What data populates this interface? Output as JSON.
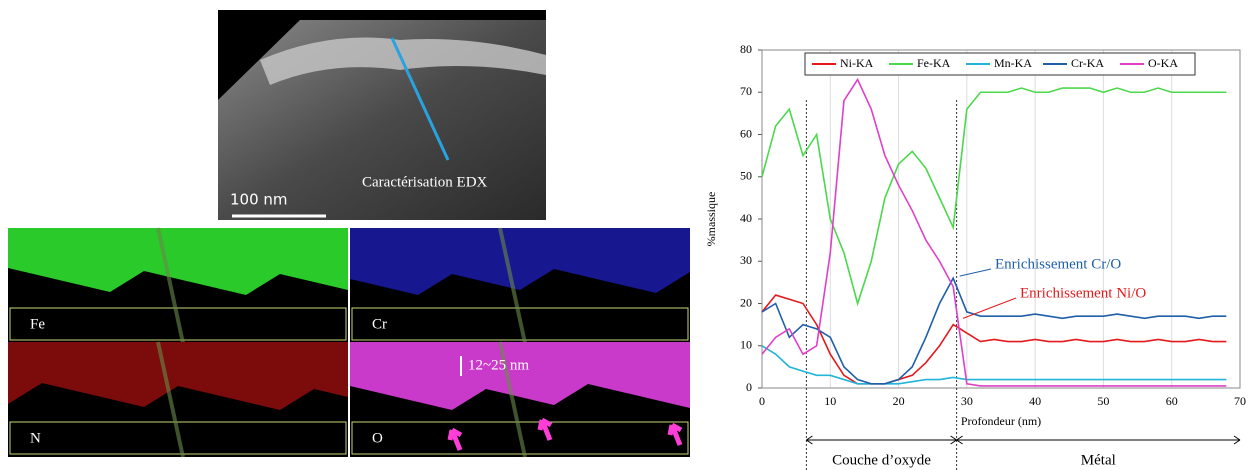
{
  "images": {
    "caption": "Caractérisation EDX",
    "scale_bar": "100 nm",
    "maps": [
      {
        "label": "Fe",
        "color": "#2ee02e"
      },
      {
        "label": "Cr",
        "color": "#1a1aa0"
      },
      {
        "label": "N",
        "color": "#8a0c0c"
      },
      {
        "label": "O",
        "color": "#e040e0"
      }
    ],
    "thickness": "12~25 nm"
  },
  "chart_data": {
    "type": "line",
    "x_label": "Profondeur (nm)",
    "y_label": "%massique",
    "x": [
      0,
      2,
      4,
      6,
      8,
      10,
      12,
      14,
      16,
      18,
      20,
      22,
      24,
      26,
      28,
      30,
      32,
      34,
      36,
      38,
      40,
      42,
      44,
      46,
      48,
      50,
      52,
      54,
      56,
      58,
      60,
      62,
      64,
      66,
      68
    ],
    "series": [
      {
        "name": "Ni-KA",
        "color": "#e41a1c",
        "values": [
          18,
          22,
          21,
          20,
          15,
          8,
          3,
          1,
          1,
          1,
          2,
          3,
          6,
          10,
          15,
          13,
          11,
          11.5,
          11,
          11,
          11.5,
          11,
          11,
          11.5,
          11,
          11,
          11.5,
          11,
          11,
          11.5,
          11,
          11,
          11.5,
          11,
          11
        ]
      },
      {
        "name": "Fe-KA",
        "color": "#4cd84c",
        "values": [
          50,
          62,
          66,
          55,
          60,
          40,
          32,
          20,
          30,
          45,
          53,
          56,
          52,
          45,
          38,
          66,
          70,
          70,
          70,
          71,
          70,
          70,
          71,
          71,
          71,
          70,
          71,
          70,
          70,
          71,
          70,
          70,
          70,
          70,
          70
        ]
      },
      {
        "name": "Mn-KA",
        "color": "#22b5d8",
        "values": [
          10,
          8,
          5,
          4,
          3,
          3,
          2,
          1,
          1,
          1,
          1,
          1.5,
          2,
          2,
          2.5,
          2,
          2,
          2,
          2,
          2,
          2,
          2,
          2,
          2,
          2,
          2,
          2,
          2,
          2,
          2,
          2,
          2,
          2,
          2,
          2
        ]
      },
      {
        "name": "Cr-KA",
        "color": "#1f5fa8",
        "values": [
          18,
          20,
          12,
          15,
          14,
          12,
          5,
          2,
          1,
          1,
          2,
          5,
          12,
          20,
          26,
          18,
          17,
          17,
          17,
          17,
          17.5,
          17,
          16.5,
          17,
          17,
          17,
          17.5,
          17,
          16.5,
          17,
          17,
          17,
          16.5,
          17,
          17
        ]
      },
      {
        "name": "O-KA",
        "color": "#e040c8",
        "values": [
          8,
          12,
          14,
          8,
          10,
          32,
          68,
          73,
          66,
          55,
          48,
          42,
          35,
          30,
          24,
          1,
          0.5,
          0.5,
          0.5,
          0.5,
          0.5,
          0.5,
          0.5,
          0.5,
          0.5,
          0.5,
          0.5,
          0.5,
          0.5,
          0.5,
          0.5,
          0.5,
          0.5,
          0.5,
          0.5
        ]
      }
    ],
    "xlim": [
      0,
      70
    ],
    "xticks": [
      0,
      10,
      20,
      30,
      40,
      50,
      60,
      70
    ],
    "ylim": [
      0,
      80
    ],
    "yticks": [
      0,
      10,
      20,
      30,
      40,
      50,
      60,
      70,
      80
    ],
    "grid": "x",
    "legend": "top",
    "boundaries": [
      6.5,
      28.5
    ],
    "region_labels": [
      "Couche d’oxyde",
      "Métal"
    ],
    "annotations": [
      {
        "text": "Enrichissement Cr/O",
        "color": "#1f5fa8",
        "x": 28.5,
        "y": 26
      },
      {
        "text": "Enrichissement Ni/O",
        "color": "#e41a1c",
        "x": 29,
        "y": 16
      }
    ]
  }
}
